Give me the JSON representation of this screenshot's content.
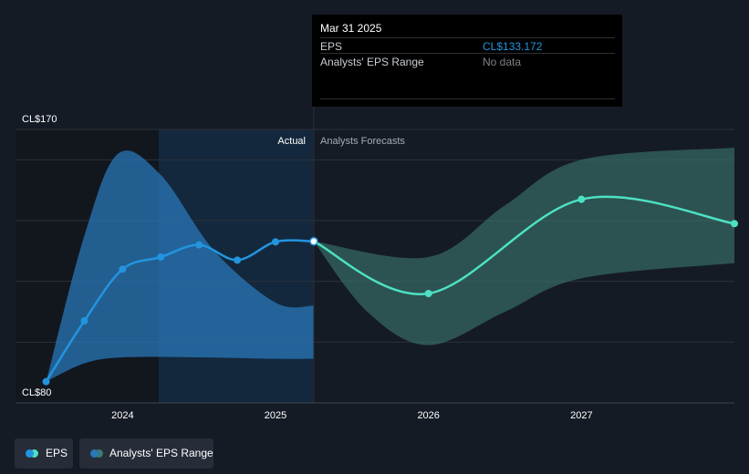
{
  "chart_data": {
    "type": "line",
    "y_axis": {
      "min_label": "CL$80",
      "max_label": "CL$170",
      "ylim": [
        80,
        170
      ]
    },
    "x_ticks": [
      {
        "label": "2024",
        "x": 2024.0
      },
      {
        "label": "2025",
        "x": 2025.0
      },
      {
        "label": "2026",
        "x": 2026.0
      },
      {
        "label": "2027",
        "x": 2027.0
      }
    ],
    "xlim": [
      2023.3,
      2028.0
    ],
    "divider_x": 2025.25,
    "region_labels": {
      "actual": "Actual",
      "forecast": "Analysts Forecasts"
    },
    "series": [
      {
        "name": "EPS",
        "color": "#2394df",
        "points": [
          {
            "x": 2023.5,
            "y": 87
          },
          {
            "x": 2023.75,
            "y": 107
          },
          {
            "x": 2024.0,
            "y": 124
          },
          {
            "x": 2024.25,
            "y": 128
          },
          {
            "x": 2024.5,
            "y": 132
          },
          {
            "x": 2024.75,
            "y": 127
          },
          {
            "x": 2025.0,
            "y": 133
          },
          {
            "x": 2025.25,
            "y": 133.172
          }
        ]
      },
      {
        "name": "EPS forecast",
        "color": "#4de1c4",
        "points": [
          {
            "x": 2025.25,
            "y": 133.172
          },
          {
            "x": 2026.0,
            "y": 116
          },
          {
            "x": 2027.0,
            "y": 147
          },
          {
            "x": 2028.0,
            "y": 139
          }
        ]
      }
    ],
    "ranges": [
      {
        "name": "Analysts' EPS Range (past)",
        "color": "#2a77b8",
        "upper": [
          {
            "x": 2023.5,
            "y": 87
          },
          {
            "x": 2023.75,
            "y": 135
          },
          {
            "x": 2023.97,
            "y": 162
          },
          {
            "x": 2024.25,
            "y": 155
          },
          {
            "x": 2024.6,
            "y": 130
          },
          {
            "x": 2025.0,
            "y": 113
          },
          {
            "x": 2025.25,
            "y": 112
          }
        ],
        "lower": [
          {
            "x": 2023.5,
            "y": 87
          },
          {
            "x": 2023.75,
            "y": 93
          },
          {
            "x": 2024.0,
            "y": 95
          },
          {
            "x": 2024.5,
            "y": 95
          },
          {
            "x": 2025.0,
            "y": 94.5
          },
          {
            "x": 2025.25,
            "y": 94.5
          }
        ]
      },
      {
        "name": "Analysts' EPS Range (forecast)",
        "color": "#3c7a70",
        "upper": [
          {
            "x": 2025.25,
            "y": 133.172
          },
          {
            "x": 2026.0,
            "y": 128
          },
          {
            "x": 2026.5,
            "y": 145
          },
          {
            "x": 2027.0,
            "y": 160
          },
          {
            "x": 2028.0,
            "y": 164
          }
        ],
        "lower": [
          {
            "x": 2025.25,
            "y": 133.172
          },
          {
            "x": 2025.6,
            "y": 110
          },
          {
            "x": 2026.0,
            "y": 99
          },
          {
            "x": 2026.5,
            "y": 110
          },
          {
            "x": 2027.0,
            "y": 121
          },
          {
            "x": 2028.0,
            "y": 126
          }
        ]
      }
    ],
    "highlight_point": {
      "x": 2025.25,
      "y": 133.172
    }
  },
  "tooltip": {
    "date": "Mar 31 2025",
    "rows": [
      {
        "label": "EPS",
        "value": "CL$133.172",
        "color": "#2394df"
      },
      {
        "label": "Analysts' EPS Range",
        "value": "No data",
        "color": "#7b8088"
      }
    ]
  },
  "legend": {
    "eps_label": "EPS",
    "range_label": "Analysts' EPS Range",
    "eps_colors": [
      "#2394df",
      "#4de1c4"
    ],
    "range_colors": [
      "#2a77b8",
      "#3c7a70"
    ]
  }
}
